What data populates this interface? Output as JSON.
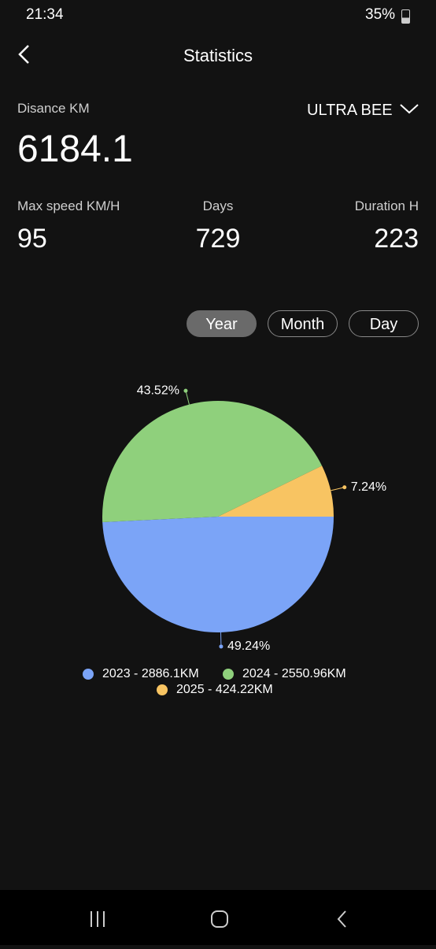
{
  "status_bar": {
    "time": "21:34",
    "battery": "35%"
  },
  "header": {
    "title": "Statistics"
  },
  "summary": {
    "distance_label": "Disance KM",
    "distance": "6184.1",
    "vehicle": "ULTRA BEE",
    "stats": [
      {
        "label": "Max speed KM/H",
        "value": "95"
      },
      {
        "label": "Days",
        "value": "729"
      },
      {
        "label": "Duration H",
        "value": "223"
      }
    ]
  },
  "tabs": [
    "Year",
    "Month",
    "Day"
  ],
  "chart_data": {
    "type": "pie",
    "categories": [
      "2023 - 2886.1KM",
      "2024 - 2550.96KM",
      "2025 - 424.22KM"
    ],
    "values": [
      49.24,
      43.52,
      7.24
    ],
    "value_labels": [
      "49.24%",
      "43.52%",
      "7.24%"
    ],
    "colors": [
      "#7ba4f7",
      "#8fd07c",
      "#f8c462"
    ]
  }
}
